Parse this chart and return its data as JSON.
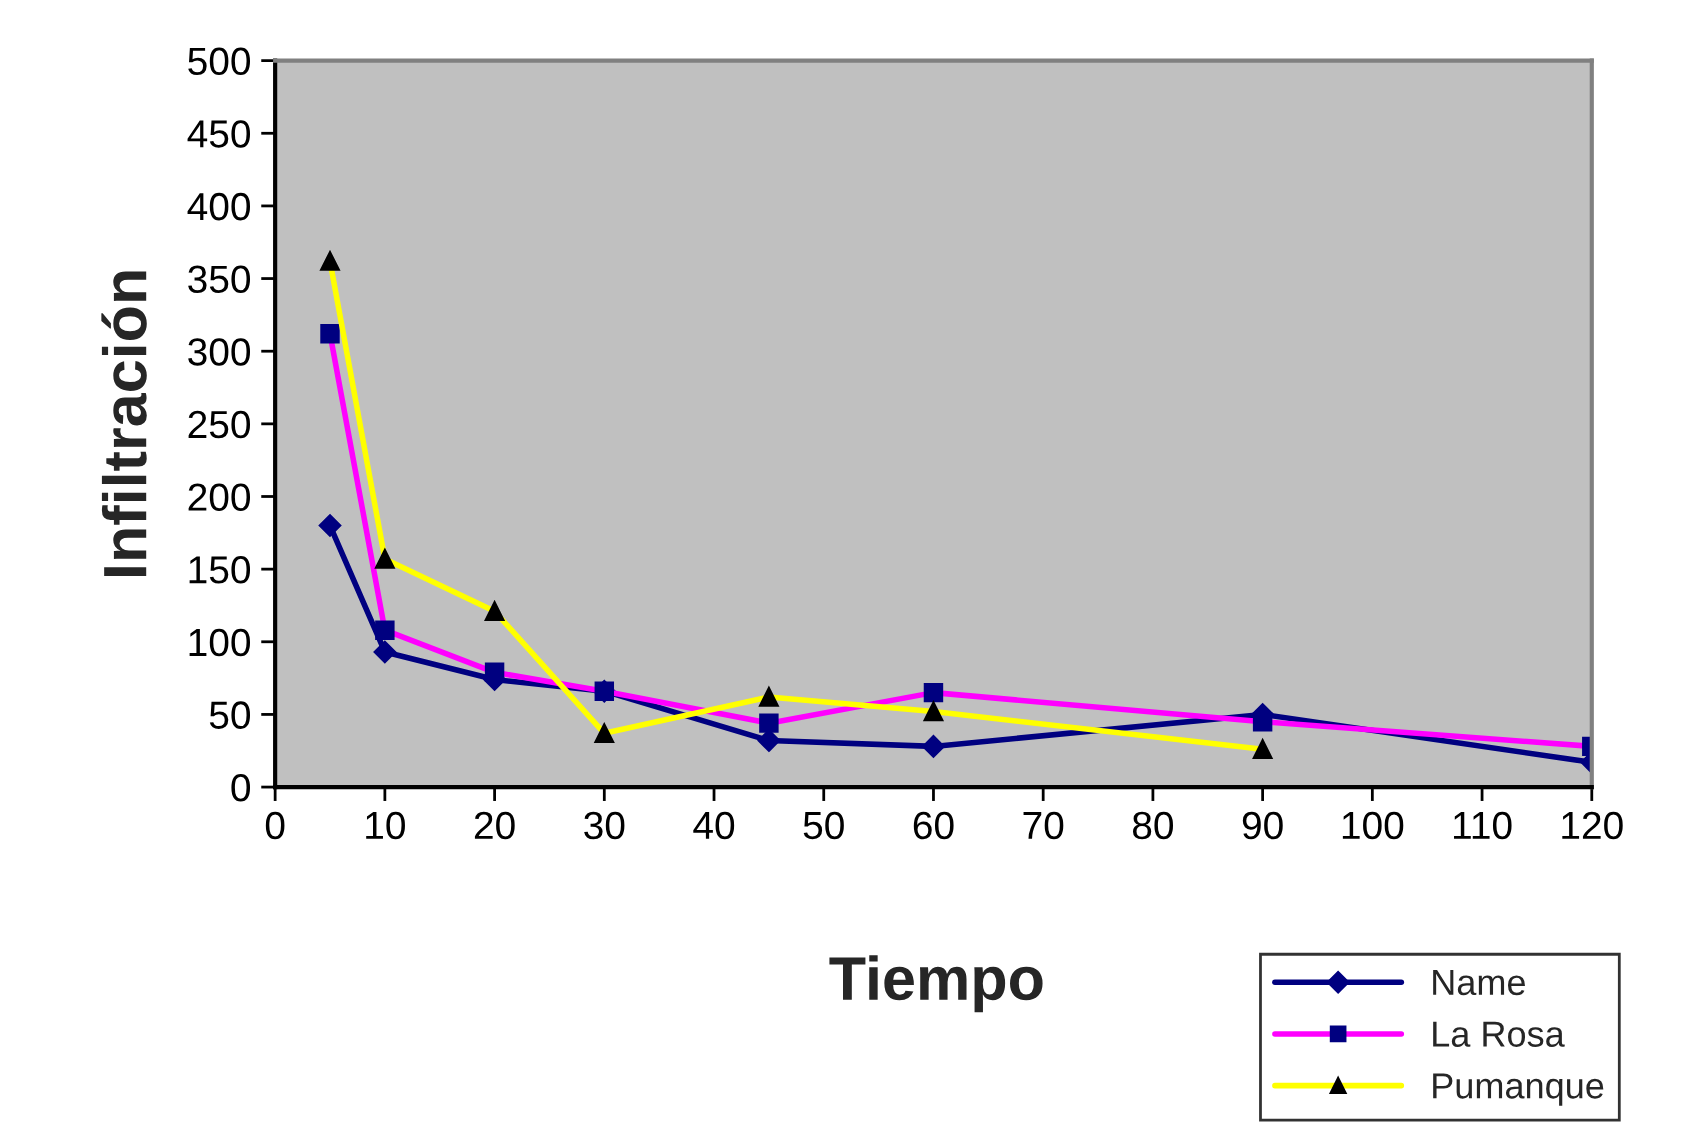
{
  "chart_data": {
    "type": "line",
    "xlabel": "Tiempo",
    "ylabel": "Infiltración",
    "x": [
      5,
      10,
      20,
      30,
      45,
      60,
      90,
      120
    ],
    "series": [
      {
        "name": "Name",
        "color": "#000080",
        "marker": "diamond",
        "values": [
          180,
          93,
          74,
          66,
          32,
          28,
          50,
          17
        ]
      },
      {
        "name": "La Rosa",
        "color": "#ff00ff",
        "marker": "square",
        "values": [
          312,
          108,
          79,
          66,
          44,
          65,
          45,
          28
        ]
      },
      {
        "name": "Pumanque",
        "color": "#ffff00",
        "marker": "triangle",
        "values": [
          362,
          157,
          121,
          37,
          62,
          52,
          26,
          null
        ]
      }
    ],
    "xlim": [
      0,
      120
    ],
    "xticks": [
      0,
      10,
      20,
      30,
      40,
      50,
      60,
      70,
      80,
      90,
      100,
      110,
      120
    ],
    "ylim": [
      0,
      500
    ],
    "yticks": [
      0,
      50,
      100,
      150,
      200,
      250,
      300,
      350,
      400,
      450,
      500
    ],
    "grid": false,
    "legend": "bottom right",
    "line_style": "solid"
  }
}
